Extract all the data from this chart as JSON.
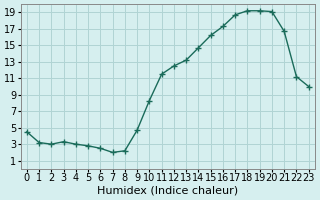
{
  "x": [
    0,
    1,
    2,
    3,
    4,
    5,
    6,
    7,
    8,
    9,
    10,
    11,
    12,
    13,
    14,
    15,
    16,
    17,
    18,
    19,
    20,
    21,
    22,
    23
  ],
  "y": [
    4.5,
    3.2,
    3.0,
    3.3,
    3.0,
    2.8,
    2.5,
    2.0,
    2.2,
    4.7,
    8.3,
    11.5,
    12.5,
    13.2,
    14.7,
    16.2,
    17.3,
    18.7,
    19.2,
    19.2,
    19.1,
    16.7,
    11.2,
    10.0
  ],
  "line_color": "#1a6b5a",
  "marker": "+",
  "bg_color": "#d6efef",
  "grid_color": "#b0d4d4",
  "xlabel": "Humidex (Indice chaleur)",
  "xlim": [
    -0.5,
    23.5
  ],
  "ylim": [
    0,
    20
  ],
  "xticks": [
    0,
    1,
    2,
    3,
    4,
    5,
    6,
    7,
    8,
    9,
    10,
    11,
    12,
    13,
    14,
    15,
    16,
    17,
    18,
    19,
    20,
    21,
    22,
    23
  ],
  "yticks": [
    1,
    3,
    5,
    7,
    9,
    11,
    13,
    15,
    17,
    19
  ],
  "xlabel_fontsize": 8,
  "tick_fontsize": 7
}
